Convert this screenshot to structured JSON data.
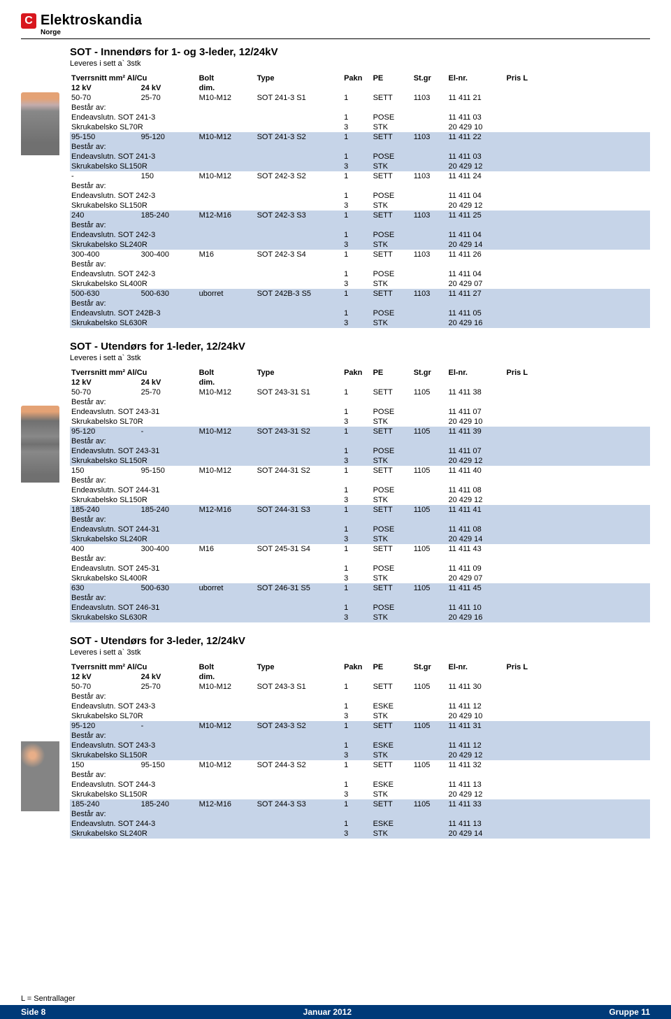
{
  "brand": {
    "mark": "C",
    "name": "Elektroskandia",
    "sub": "Norge"
  },
  "footer": {
    "note": "L = Sentrallager",
    "left": "Side  8",
    "center": "Januar 2012",
    "right": "Gruppe 11"
  },
  "columns": {
    "a1": "Tverrsnitt mm² Al/Cu",
    "a2": "12 kV",
    "b2": "24 kV",
    "c1": "Bolt",
    "c2": "dim.",
    "d1": "Type",
    "e1": "Pakn",
    "f1": "PE",
    "g1": "St.gr",
    "h1": "El-nr.",
    "i1": "Pris L"
  },
  "bestar": "Består av:",
  "sections": [
    {
      "title": "SOT - Innendørs for 1- og 3-leder, 12/24kV",
      "sub": "Leveres i sett a` 3stk",
      "rows": [
        {
          "t": "h"
        },
        {
          "t": "m",
          "alt": 0,
          "a": "50-70",
          "b": "25-70",
          "c": "M10-M12",
          "d": "SOT 241-3 S1",
          "e": "1",
          "f": "SETT",
          "g": "1103",
          "h": "11 411 21"
        },
        {
          "t": "b",
          "alt": 0
        },
        {
          "t": "s",
          "alt": 0,
          "a": "Endeavslutn. SOT 241-3",
          "e": "1",
          "f": "POSE",
          "h": "11 411 03"
        },
        {
          "t": "s",
          "alt": 0,
          "a": "Skrukabelsko SL70R",
          "e": "3",
          "f": "STK",
          "h": "20 429 10"
        },
        {
          "t": "m",
          "alt": 1,
          "a": "95-150",
          "b": "95-120",
          "c": "M10-M12",
          "d": "SOT 241-3 S2",
          "e": "1",
          "f": "SETT",
          "g": "1103",
          "h": "11 411 22"
        },
        {
          "t": "b",
          "alt": 1
        },
        {
          "t": "s",
          "alt": 1,
          "a": "Endeavslutn. SOT 241-3",
          "e": "1",
          "f": "POSE",
          "h": "11 411 03"
        },
        {
          "t": "s",
          "alt": 1,
          "a": "Skrukabelsko SL150R",
          "e": "3",
          "f": "STK",
          "h": "20 429 12"
        },
        {
          "t": "m",
          "alt": 0,
          "a": "-",
          "b": "150",
          "c": "M10-M12",
          "d": "SOT 242-3 S2",
          "e": "1",
          "f": "SETT",
          "g": "1103",
          "h": "11 411 24"
        },
        {
          "t": "b",
          "alt": 0
        },
        {
          "t": "s",
          "alt": 0,
          "a": "Endeavslutn. SOT 242-3",
          "e": "1",
          "f": "POSE",
          "h": "11 411 04"
        },
        {
          "t": "s",
          "alt": 0,
          "a": "Skrukabelsko SL150R",
          "e": "3",
          "f": "STK",
          "h": "20 429 12"
        },
        {
          "t": "m",
          "alt": 1,
          "a": "240",
          "b": "185-240",
          "c": "M12-M16",
          "d": "SOT 242-3 S3",
          "e": "1",
          "f": "SETT",
          "g": "1103",
          "h": "11 411 25"
        },
        {
          "t": "b",
          "alt": 1
        },
        {
          "t": "s",
          "alt": 1,
          "a": "Endeavslutn. SOT 242-3",
          "e": "1",
          "f": "POSE",
          "h": "11 411 04"
        },
        {
          "t": "s",
          "alt": 1,
          "a": "Skrukabelsko SL240R",
          "e": "3",
          "f": "STK",
          "h": "20 429 14"
        },
        {
          "t": "m",
          "alt": 0,
          "a": "300-400",
          "b": "300-400",
          "c": "M16",
          "d": "SOT 242-3 S4",
          "e": "1",
          "f": "SETT",
          "g": "1103",
          "h": "11 411 26"
        },
        {
          "t": "b",
          "alt": 0
        },
        {
          "t": "s",
          "alt": 0,
          "a": "Endeavslutn. SOT 242-3",
          "e": "1",
          "f": "POSE",
          "h": "11 411 04"
        },
        {
          "t": "s",
          "alt": 0,
          "a": "Skrukabelsko SL400R",
          "e": "3",
          "f": "STK",
          "h": "20 429 07"
        },
        {
          "t": "m",
          "alt": 1,
          "a": "500-630",
          "b": "500-630",
          "c": "uborret",
          "d": "SOT 242B-3 S5",
          "e": "1",
          "f": "SETT",
          "g": "1103",
          "h": "11 411 27"
        },
        {
          "t": "b",
          "alt": 1
        },
        {
          "t": "s",
          "alt": 1,
          "a": "Endeavslutn. SOT 242B-3",
          "e": "1",
          "f": "POSE",
          "h": "11 411 05"
        },
        {
          "t": "s",
          "alt": 1,
          "a": "Skrukabelsko SL630R",
          "e": "3",
          "f": "STK",
          "h": "20 429 16"
        }
      ]
    },
    {
      "title": "SOT - Utendørs for 1-leder, 12/24kV",
      "sub": "Leveres i sett a` 3stk",
      "rows": [
        {
          "t": "h"
        },
        {
          "t": "m",
          "alt": 0,
          "a": "50-70",
          "b": "25-70",
          "c": "M10-M12",
          "d": "SOT 243-31 S1",
          "e": "1",
          "f": "SETT",
          "g": "1105",
          "h": "11 411 38"
        },
        {
          "t": "b",
          "alt": 0
        },
        {
          "t": "s",
          "alt": 0,
          "a": "Endeavslutn. SOT 243-31",
          "e": "1",
          "f": "POSE",
          "h": "11 411 07"
        },
        {
          "t": "s",
          "alt": 0,
          "a": "Skrukabelsko SL70R",
          "e": "3",
          "f": "STK",
          "h": "20 429 10"
        },
        {
          "t": "m",
          "alt": 1,
          "a": "95-120",
          "b": "-",
          "c": "M10-M12",
          "d": "SOT 243-31 S2",
          "e": "1",
          "f": "SETT",
          "g": "1105",
          "h": "11 411 39"
        },
        {
          "t": "b",
          "alt": 1
        },
        {
          "t": "s",
          "alt": 1,
          "a": "Endeavslutn. SOT 243-31",
          "e": "1",
          "f": "POSE",
          "h": "11 411 07"
        },
        {
          "t": "s",
          "alt": 1,
          "a": "Skrukabelsko SL150R",
          "e": "3",
          "f": "STK",
          "h": "20 429 12"
        },
        {
          "t": "m",
          "alt": 0,
          "a": "150",
          "b": "95-150",
          "c": "M10-M12",
          "d": "SOT 244-31 S2",
          "e": "1",
          "f": "SETT",
          "g": "1105",
          "h": "11 411 40"
        },
        {
          "t": "b",
          "alt": 0
        },
        {
          "t": "s",
          "alt": 0,
          "a": "Endeavslutn. SOT 244-31",
          "e": "1",
          "f": "POSE",
          "h": "11 411 08"
        },
        {
          "t": "s",
          "alt": 0,
          "a": "Skrukabelsko SL150R",
          "e": "3",
          "f": "STK",
          "h": "20 429 12"
        },
        {
          "t": "m",
          "alt": 1,
          "a": "185-240",
          "b": "185-240",
          "c": "M12-M16",
          "d": "SOT 244-31 S3",
          "e": "1",
          "f": "SETT",
          "g": "1105",
          "h": "11 411 41"
        },
        {
          "t": "b",
          "alt": 1
        },
        {
          "t": "s",
          "alt": 1,
          "a": "Endeavslutn. SOT 244-31",
          "e": "1",
          "f": "POSE",
          "h": "11 411 08"
        },
        {
          "t": "s",
          "alt": 1,
          "a": "Skrukabelsko SL240R",
          "e": "3",
          "f": "STK",
          "h": "20 429 14"
        },
        {
          "t": "m",
          "alt": 0,
          "a": "400",
          "b": "300-400",
          "c": "M16",
          "d": "SOT 245-31 S4",
          "e": "1",
          "f": "SETT",
          "g": "1105",
          "h": "11 411 43"
        },
        {
          "t": "b",
          "alt": 0
        },
        {
          "t": "s",
          "alt": 0,
          "a": "Endeavslutn. SOT 245-31",
          "e": "1",
          "f": "POSE",
          "h": "11 411 09"
        },
        {
          "t": "s",
          "alt": 0,
          "a": "Skrukabelsko SL400R",
          "e": "3",
          "f": "STK",
          "h": "20 429 07"
        },
        {
          "t": "m",
          "alt": 1,
          "a": "630",
          "b": "500-630",
          "c": "uborret",
          "d": "SOT 246-31 S5",
          "e": "1",
          "f": "SETT",
          "g": "1105",
          "h": "11 411 45"
        },
        {
          "t": "b",
          "alt": 1
        },
        {
          "t": "s",
          "alt": 1,
          "a": "Endeavslutn. SOT 246-31",
          "e": "1",
          "f": "POSE",
          "h": "11 411 10"
        },
        {
          "t": "s",
          "alt": 1,
          "a": "Skrukabelsko SL630R",
          "e": "3",
          "f": "STK",
          "h": "20 429 16"
        }
      ]
    },
    {
      "title": "SOT - Utendørs for 3-leder, 12/24kV",
      "sub": "Leveres i sett a` 3stk",
      "rows": [
        {
          "t": "h"
        },
        {
          "t": "m",
          "alt": 0,
          "a": "50-70",
          "b": "25-70",
          "c": "M10-M12",
          "d": "SOT 243-3 S1",
          "e": "1",
          "f": "SETT",
          "g": "1105",
          "h": "11 411 30"
        },
        {
          "t": "b",
          "alt": 0
        },
        {
          "t": "s",
          "alt": 0,
          "a": "Endeavslutn. SOT 243-3",
          "e": "1",
          "f": "ESKE",
          "h": "11 411 12"
        },
        {
          "t": "s",
          "alt": 0,
          "a": "Skrukabelsko SL70R",
          "e": "3",
          "f": "STK",
          "h": "20 429 10"
        },
        {
          "t": "m",
          "alt": 1,
          "a": "95-120",
          "b": "-",
          "c": "M10-M12",
          "d": "SOT 243-3 S2",
          "e": "1",
          "f": "SETT",
          "g": "1105",
          "h": "11 411 31"
        },
        {
          "t": "b",
          "alt": 1
        },
        {
          "t": "s",
          "alt": 1,
          "a": "Endeavslutn. SOT 243-3",
          "e": "1",
          "f": "ESKE",
          "h": "11 411 12"
        },
        {
          "t": "s",
          "alt": 1,
          "a": "Skrukabelsko SL150R",
          "e": "3",
          "f": "STK",
          "h": "20 429 12"
        },
        {
          "t": "m",
          "alt": 0,
          "a": "150",
          "b": "95-150",
          "c": "M10-M12",
          "d": "SOT 244-3 S2",
          "e": "1",
          "f": "SETT",
          "g": "1105",
          "h": "11 411 32"
        },
        {
          "t": "b",
          "alt": 0
        },
        {
          "t": "s",
          "alt": 0,
          "a": "Endeavslutn. SOT 244-3",
          "e": "1",
          "f": "ESKE",
          "h": "11 411 13"
        },
        {
          "t": "s",
          "alt": 0,
          "a": "Skrukabelsko SL150R",
          "e": "3",
          "f": "STK",
          "h": "20 429 12"
        },
        {
          "t": "m",
          "alt": 1,
          "a": "185-240",
          "b": "185-240",
          "c": "M12-M16",
          "d": "SOT 244-3 S3",
          "e": "1",
          "f": "SETT",
          "g": "1105",
          "h": "11 411 33"
        },
        {
          "t": "b",
          "alt": 1
        },
        {
          "t": "s",
          "alt": 1,
          "a": "Endeavslutn. SOT 244-3",
          "e": "1",
          "f": "ESKE",
          "h": "11 411 13"
        },
        {
          "t": "s",
          "alt": 1,
          "a": "Skrukabelsko SL240R",
          "e": "3",
          "f": "STK",
          "h": "20 429 14"
        }
      ]
    }
  ]
}
